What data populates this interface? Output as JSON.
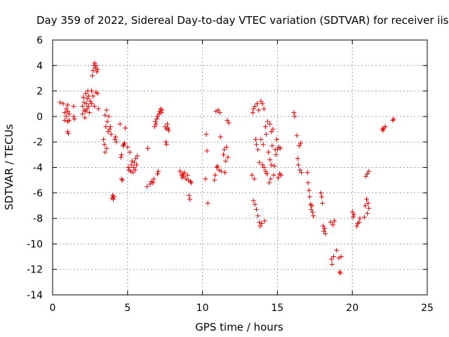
{
  "chart_data": {
    "type": "scatter",
    "title": "Day 359 of 2022, Sidereal Day-to-day VTEC variation (SDTVAR) for receiver iisc",
    "xlabel": "GPS time / hours",
    "ylabel": "SDTVAR / TECUs",
    "xlim": [
      0,
      25
    ],
    "ylim": [
      -14,
      6
    ],
    "xticks": [
      0,
      5,
      10,
      15,
      20,
      25
    ],
    "yticks": [
      -14,
      -12,
      -10,
      -8,
      -6,
      -4,
      -2,
      0,
      2,
      4,
      6
    ],
    "grid": true,
    "marker": "+",
    "color": "#e00000",
    "series": [
      {
        "name": "SDTVAR",
        "points": [
          [
            0.5,
            1.1
          ],
          [
            0.7,
            1.0
          ],
          [
            0.8,
            0.3
          ],
          [
            0.8,
            -0.3
          ],
          [
            0.9,
            0.6
          ],
          [
            0.9,
            0.0
          ],
          [
            1.0,
            -0.4
          ],
          [
            1.0,
            0.4
          ],
          [
            1.0,
            0.9
          ],
          [
            1.0,
            -1.2
          ],
          [
            1.05,
            -1.35
          ],
          [
            1.1,
            0.2
          ],
          [
            1.1,
            -0.3
          ],
          [
            1.4,
            0.8
          ],
          [
            1.4,
            0.0
          ],
          [
            1.45,
            -0.2
          ],
          [
            2.0,
            0.2
          ],
          [
            2.0,
            0.8
          ],
          [
            2.05,
            1.5
          ],
          [
            2.1,
            0.5
          ],
          [
            2.1,
            1.1
          ],
          [
            2.15,
            -0.1
          ],
          [
            2.2,
            0.4
          ],
          [
            2.2,
            1.8
          ],
          [
            2.25,
            1.0
          ],
          [
            2.3,
            0.6
          ],
          [
            2.3,
            1.4
          ],
          [
            2.35,
            2.0
          ],
          [
            2.4,
            0.8
          ],
          [
            2.4,
            1.6
          ],
          [
            2.45,
            0.3
          ],
          [
            2.5,
            1.2
          ],
          [
            2.6,
            2.0
          ],
          [
            2.6,
            1.0
          ],
          [
            2.65,
            3.2
          ],
          [
            2.7,
            3.6
          ],
          [
            2.7,
            1.6
          ],
          [
            2.75,
            4.0
          ],
          [
            2.8,
            4.2
          ],
          [
            2.8,
            0.8
          ],
          [
            2.85,
            3.8
          ],
          [
            2.9,
            4.0
          ],
          [
            2.9,
            1.9
          ],
          [
            2.95,
            3.5
          ],
          [
            3.0,
            3.7
          ],
          [
            3.0,
            1.8
          ],
          [
            3.05,
            0.6
          ],
          [
            3.4,
            -1.8
          ],
          [
            3.45,
            -2.2
          ],
          [
            3.5,
            -2.8
          ],
          [
            3.5,
            0.1
          ],
          [
            3.55,
            -0.8
          ],
          [
            3.6,
            0.5
          ],
          [
            3.6,
            -2.5
          ],
          [
            3.65,
            -0.4
          ],
          [
            3.7,
            -1.2
          ],
          [
            3.75,
            0.0
          ],
          [
            3.8,
            -1.0
          ],
          [
            3.85,
            -0.8
          ],
          [
            3.9,
            -1.4
          ],
          [
            3.95,
            -6.4
          ],
          [
            4.0,
            -6.2
          ],
          [
            4.05,
            -6.5
          ],
          [
            4.1,
            -6.3
          ],
          [
            4.15,
            -1.8
          ],
          [
            4.2,
            -1.6
          ],
          [
            4.25,
            -2.0
          ],
          [
            4.5,
            -0.6
          ],
          [
            4.55,
            -3.2
          ],
          [
            4.6,
            -3.0
          ],
          [
            4.6,
            -4.9
          ],
          [
            4.65,
            -5.0
          ],
          [
            4.7,
            -2.3
          ],
          [
            4.75,
            -2.2
          ],
          [
            4.8,
            -2.1
          ],
          [
            4.85,
            -0.9
          ],
          [
            5.0,
            -2.4
          ],
          [
            5.05,
            -4.0
          ],
          [
            5.1,
            -4.2
          ],
          [
            5.15,
            -2.8
          ],
          [
            5.2,
            -4.3
          ],
          [
            5.25,
            -3.8
          ],
          [
            5.3,
            -3.5
          ],
          [
            5.35,
            -4.4
          ],
          [
            5.4,
            -4.0
          ],
          [
            5.45,
            -3.6
          ],
          [
            5.5,
            -4.2
          ],
          [
            5.55,
            -3.3
          ],
          [
            5.6,
            -3.8
          ],
          [
            5.65,
            -3.1
          ],
          [
            6.3,
            -5.5
          ],
          [
            6.35,
            -2.5
          ],
          [
            6.5,
            -5.3
          ],
          [
            6.6,
            -5.1
          ],
          [
            6.7,
            -5.2
          ],
          [
            6.75,
            -4.9
          ],
          [
            6.8,
            -0.8
          ],
          [
            6.85,
            -0.4
          ],
          [
            6.9,
            -0.6
          ],
          [
            6.95,
            -0.2
          ],
          [
            7.0,
            0.0
          ],
          [
            7.0,
            -4.5
          ],
          [
            7.05,
            -4.3
          ],
          [
            7.1,
            0.2
          ],
          [
            7.15,
            0.4
          ],
          [
            7.2,
            0.6
          ],
          [
            7.25,
            0.3
          ],
          [
            7.3,
            0.5
          ],
          [
            7.5,
            -0.8
          ],
          [
            7.55,
            -2.0
          ],
          [
            7.6,
            -1.0
          ],
          [
            7.6,
            -2.2
          ],
          [
            7.65,
            -0.6
          ],
          [
            7.7,
            -0.9
          ],
          [
            7.75,
            -1.1
          ],
          [
            8.5,
            -4.3
          ],
          [
            8.6,
            -4.6
          ],
          [
            8.65,
            -4.8
          ],
          [
            8.7,
            -4.5
          ],
          [
            8.75,
            -4.7
          ],
          [
            8.8,
            -4.4
          ],
          [
            8.9,
            -4.9
          ],
          [
            9.0,
            -4.6
          ],
          [
            9.05,
            -5.0
          ],
          [
            9.1,
            -6.2
          ],
          [
            9.15,
            -6.5
          ],
          [
            9.2,
            -5.1
          ],
          [
            9.25,
            -5.2
          ],
          [
            10.2,
            -4.9
          ],
          [
            10.25,
            -1.4
          ],
          [
            10.3,
            -2.7
          ],
          [
            10.35,
            -6.8
          ],
          [
            10.8,
            -5.0
          ],
          [
            10.85,
            -4.6
          ],
          [
            10.9,
            0.4
          ],
          [
            10.95,
            -4.0
          ],
          [
            11.0,
            -3.9
          ],
          [
            11.05,
            0.5
          ],
          [
            11.1,
            -4.2
          ],
          [
            11.15,
            0.3
          ],
          [
            11.2,
            -1.6
          ],
          [
            11.25,
            -4.3
          ],
          [
            11.4,
            -3.0
          ],
          [
            11.45,
            -2.6
          ],
          [
            11.5,
            -4.4
          ],
          [
            11.55,
            -3.5
          ],
          [
            11.6,
            -2.4
          ],
          [
            11.65,
            -0.3
          ],
          [
            11.7,
            -3.2
          ],
          [
            11.75,
            -0.5
          ],
          [
            13.3,
            -4.6
          ],
          [
            13.35,
            0.3
          ],
          [
            13.4,
            -6.6
          ],
          [
            13.4,
            0.6
          ],
          [
            13.45,
            -4.9
          ],
          [
            13.5,
            -6.9
          ],
          [
            13.5,
            0.8
          ],
          [
            13.55,
            -1.8
          ],
          [
            13.6,
            -7.3
          ],
          [
            13.6,
            -2.2
          ],
          [
            13.65,
            1.0
          ],
          [
            13.7,
            -2.6
          ],
          [
            13.7,
            -7.8
          ],
          [
            13.75,
            0.5
          ],
          [
            13.8,
            -8.3
          ],
          [
            13.8,
            -3.6
          ],
          [
            13.85,
            -8.6
          ],
          [
            13.9,
            1.2
          ],
          [
            13.9,
            -1.8
          ],
          [
            13.95,
            -8.4
          ],
          [
            14.0,
            -3.8
          ],
          [
            14.0,
            1.0
          ],
          [
            14.05,
            -2.2
          ],
          [
            14.1,
            -4.0
          ],
          [
            14.1,
            0.6
          ],
          [
            14.15,
            -8.2
          ],
          [
            14.2,
            -0.8
          ],
          [
            14.2,
            -4.3
          ],
          [
            14.25,
            -1.4
          ],
          [
            14.3,
            -4.5
          ],
          [
            14.35,
            -0.4
          ],
          [
            14.4,
            -2.8
          ],
          [
            14.45,
            -5.2
          ],
          [
            14.5,
            -3.4
          ],
          [
            14.5,
            -0.6
          ],
          [
            14.55,
            -4.9
          ],
          [
            14.6,
            -1.2
          ],
          [
            14.6,
            -3.8
          ],
          [
            14.65,
            -2.3
          ],
          [
            14.7,
            -1.0
          ],
          [
            14.75,
            -4.6
          ],
          [
            14.8,
            -3.9
          ],
          [
            14.85,
            -2.6
          ],
          [
            14.9,
            -3.0
          ],
          [
            14.95,
            -1.8
          ],
          [
            15.0,
            -2.6
          ],
          [
            15.05,
            -4.8
          ],
          [
            15.1,
            -2.4
          ],
          [
            15.15,
            -4.5
          ],
          [
            15.2,
            -2.5
          ],
          [
            15.25,
            -4.6
          ],
          [
            16.1,
            0.3
          ],
          [
            16.15,
            0.0
          ],
          [
            16.3,
            -1.5
          ],
          [
            16.35,
            -3.3
          ],
          [
            16.4,
            -3.8
          ],
          [
            16.45,
            -2.3
          ],
          [
            16.5,
            -4.2
          ],
          [
            16.55,
            -2.1
          ],
          [
            16.6,
            -4.4
          ],
          [
            17.0,
            -4.4
          ],
          [
            17.05,
            -5.2
          ],
          [
            17.1,
            -5.8
          ],
          [
            17.15,
            -6.3
          ],
          [
            17.2,
            -6.9
          ],
          [
            17.25,
            -7.3
          ],
          [
            17.3,
            -7.0
          ],
          [
            17.35,
            -7.5
          ],
          [
            17.4,
            -7.8
          ],
          [
            17.9,
            -6.0
          ],
          [
            17.95,
            -6.3
          ],
          [
            18.0,
            -6.8
          ],
          [
            18.05,
            -8.6
          ],
          [
            18.1,
            -9.0
          ],
          [
            18.15,
            -8.8
          ],
          [
            18.2,
            -9.2
          ],
          [
            18.55,
            -8.3
          ],
          [
            18.6,
            -11.2
          ],
          [
            18.65,
            -11.6
          ],
          [
            18.7,
            -8.5
          ],
          [
            18.75,
            -11.0
          ],
          [
            18.8,
            -8.2
          ],
          [
            18.95,
            -10.5
          ],
          [
            19.1,
            -11.1
          ],
          [
            19.15,
            -12.2
          ],
          [
            19.2,
            -12.3
          ],
          [
            19.25,
            -11.0
          ],
          [
            20.0,
            -7.5
          ],
          [
            20.05,
            -7.9
          ],
          [
            20.1,
            -7.7
          ],
          [
            20.3,
            -8.6
          ],
          [
            20.35,
            -8.4
          ],
          [
            20.45,
            -8.3
          ],
          [
            20.5,
            -8.0
          ],
          [
            20.8,
            -7.9
          ],
          [
            20.85,
            -7.0
          ],
          [
            20.9,
            -4.7
          ],
          [
            20.95,
            -6.5
          ],
          [
            21.0,
            -7.6
          ],
          [
            21.0,
            -4.5
          ],
          [
            21.05,
            -6.8
          ],
          [
            21.1,
            -4.3
          ],
          [
            21.1,
            -7.2
          ],
          [
            22.0,
            -1.0
          ],
          [
            22.05,
            -1.1
          ],
          [
            22.1,
            -0.9
          ],
          [
            22.2,
            -0.8
          ],
          [
            22.7,
            -0.3
          ],
          [
            22.75,
            -0.2
          ]
        ]
      }
    ]
  }
}
